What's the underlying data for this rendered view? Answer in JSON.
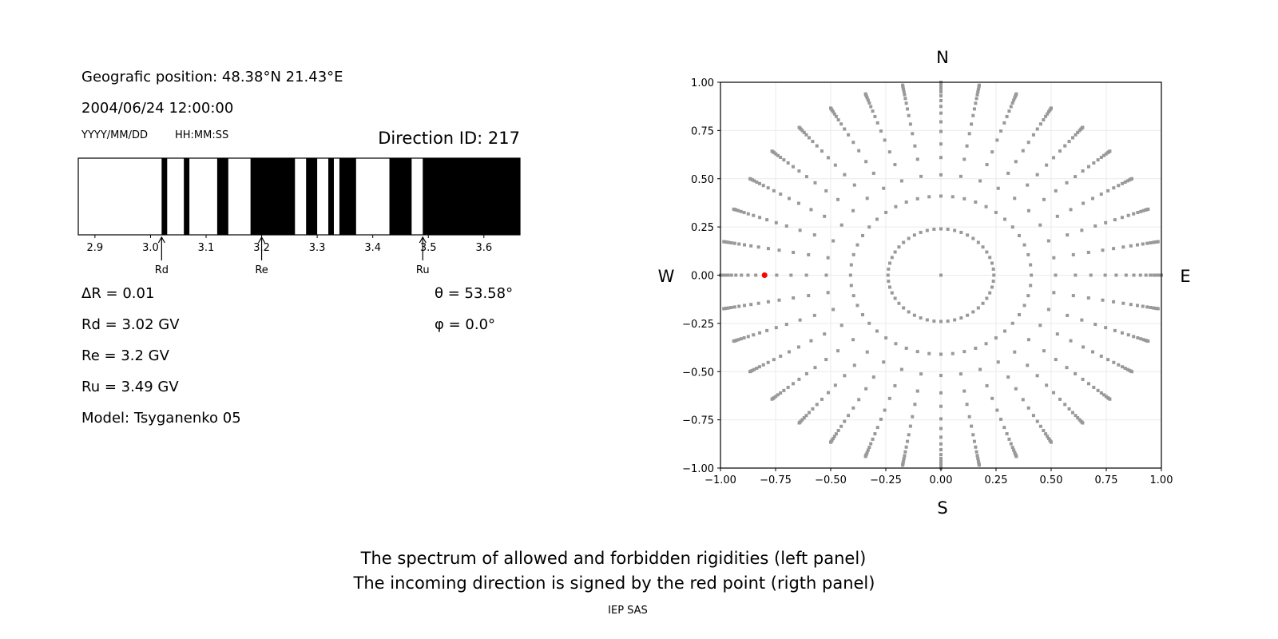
{
  "info": {
    "position": "Geografic position: 48.38°N 21.43°E",
    "datetime": "2004/06/24 12:00:00",
    "date_format": "YYYY/MM/DD",
    "time_format": "HH:MM:SS",
    "direction_id": "Direction ID: 217",
    "delta_r": "ΔR = 0.01",
    "rd": "Rd = 3.02 GV",
    "re": "Re = 3.2 GV",
    "ru": "Ru = 3.49 GV",
    "model": "Model: Tsyganenko 05",
    "theta": "θ = 53.58°",
    "phi": "φ = 0.0°"
  },
  "caption": {
    "line1": "The spectrum of allowed and forbidden rigidities (left panel)",
    "line2": "The incoming direction is signed by the red point (rigth panel)",
    "credit": "IEP SAS"
  },
  "chart_data": [
    {
      "type": "bar",
      "xlim": [
        2.87,
        3.665
      ],
      "ticks": [
        "2.9",
        "3.0",
        "3.1",
        "3.2",
        "3.3",
        "3.4",
        "3.5",
        "3.6"
      ],
      "forbidden_intervals": [
        [
          3.02,
          3.03
        ],
        [
          3.06,
          3.07
        ],
        [
          3.12,
          3.14
        ],
        [
          3.18,
          3.26
        ],
        [
          3.28,
          3.3
        ],
        [
          3.32,
          3.33
        ],
        [
          3.34,
          3.37
        ],
        [
          3.43,
          3.47
        ],
        [
          3.49,
          3.665
        ]
      ],
      "colors": {
        "forbidden": "#000000",
        "allowed": "#ffffff"
      },
      "markers": [
        {
          "label": "Rd",
          "value": 3.02
        },
        {
          "label": "Re",
          "value": 3.2
        },
        {
          "label": "Ru",
          "value": 3.49
        }
      ]
    },
    {
      "type": "scatter",
      "xlim": [
        -1,
        1
      ],
      "ylim": [
        -1,
        1
      ],
      "ticks": [
        "−1.00",
        "−0.75",
        "−0.50",
        "−0.25",
        "0.00",
        "0.25",
        "0.50",
        "0.75",
        "1.00"
      ],
      "grid": true,
      "directions": {
        "north": "N",
        "south": "S",
        "west": "W",
        "east": "E"
      },
      "grid_radii": [
        0.24,
        0.41,
        0.52,
        0.61,
        0.68,
        0.745,
        0.795,
        0.84,
        0.875,
        0.905,
        0.93,
        0.95,
        0.965,
        0.978,
        0.988,
        0.995,
        1.0
      ],
      "spoke_step_deg": 10,
      "point_color": "#999999",
      "selected_point": {
        "x": -0.8,
        "y": 0.0,
        "color": "#ff0000"
      }
    }
  ]
}
